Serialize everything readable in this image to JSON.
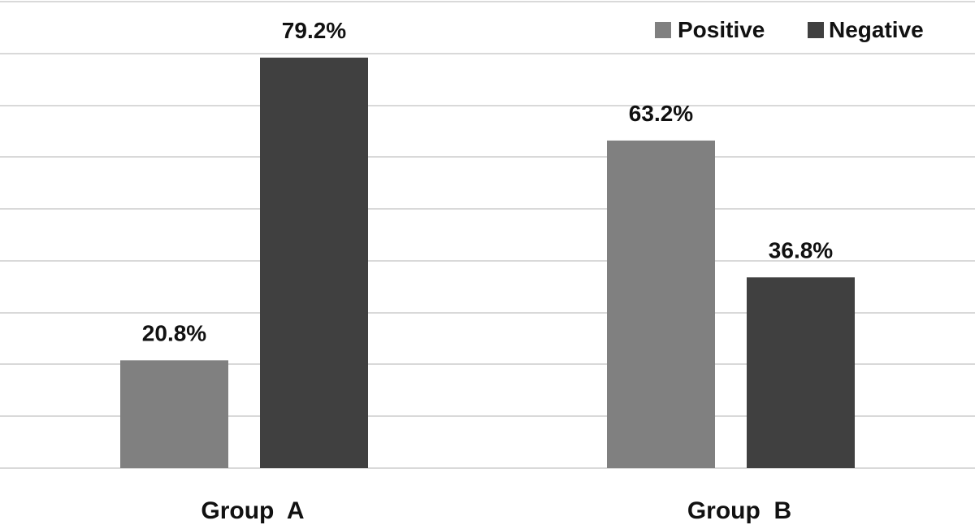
{
  "chart_data": {
    "type": "bar",
    "categories": [
      "Group  A",
      "Group  B"
    ],
    "series": [
      {
        "name": "Positive",
        "values": [
          20.8,
          63.2
        ],
        "labels": [
          "20.8%",
          "63.2%"
        ],
        "color": "#808080"
      },
      {
        "name": "Negative",
        "values": [
          79.2,
          36.8
        ],
        "labels": [
          "79.2%",
          "36.8%"
        ],
        "color": "#404040"
      }
    ],
    "title": "",
    "xlabel": "",
    "ylabel": "",
    "ylim": [
      0,
      90
    ],
    "grid": true,
    "legend": "top-right"
  }
}
